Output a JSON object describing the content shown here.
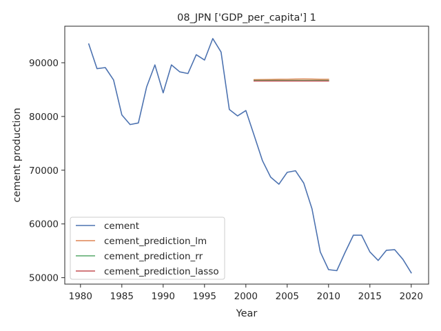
{
  "chart_data": {
    "type": "line",
    "title": "08_JPN ['GDP_per_capita'] 1",
    "xlabel": "Year",
    "ylabel": "cement production",
    "xlim": [
      1978.1,
      2022.1
    ],
    "ylim": [
      48800,
      96800
    ],
    "xticks": [
      1980,
      1985,
      1990,
      1995,
      2000,
      2005,
      2010,
      2015,
      2020
    ],
    "yticks": [
      50000,
      60000,
      70000,
      80000,
      90000
    ],
    "grid": false,
    "legend_position": "lower-left",
    "series": [
      {
        "name": "cement",
        "color": "#4c72b0",
        "x": [
          1981,
          1982,
          1983,
          1984,
          1985,
          1986,
          1987,
          1988,
          1989,
          1990,
          1991,
          1992,
          1993,
          1994,
          1995,
          1996,
          1997,
          1998,
          1999,
          2000,
          2001,
          2002,
          2003,
          2004,
          2005,
          2006,
          2007,
          2008,
          2009,
          2010,
          2011,
          2012,
          2013,
          2014,
          2015,
          2016,
          2017,
          2018,
          2019,
          2020
        ],
        "values": [
          93500,
          88900,
          89100,
          86800,
          80300,
          78500,
          78800,
          85500,
          89600,
          84400,
          89600,
          88300,
          88000,
          91500,
          90500,
          94500,
          92000,
          81300,
          80100,
          81100,
          76500,
          71800,
          68700,
          67400,
          69600,
          69900,
          67600,
          62800,
          54800,
          51500,
          51300,
          54700,
          57900,
          57900,
          54800,
          53200,
          55100,
          55200,
          53400,
          50900
        ]
      },
      {
        "name": "cement_prediction_lm",
        "color": "#dd8452",
        "x": [
          2001,
          2002,
          2003,
          2004,
          2005,
          2006,
          2007,
          2008,
          2009,
          2010
        ],
        "values": [
          86850,
          86870,
          86880,
          86900,
          86920,
          86950,
          86970,
          86960,
          86900,
          86920
        ]
      },
      {
        "name": "cement_prediction_rr",
        "color": "#55a868",
        "x": [
          2001,
          2002,
          2003,
          2004,
          2005,
          2006,
          2007,
          2008,
          2009,
          2010
        ],
        "values": [
          86700,
          86700,
          86700,
          86700,
          86700,
          86700,
          86700,
          86700,
          86700,
          86700
        ]
      },
      {
        "name": "cement_prediction_lasso",
        "color": "#c44e52",
        "x": [
          2001,
          2002,
          2003,
          2004,
          2005,
          2006,
          2007,
          2008,
          2009,
          2010
        ],
        "values": [
          86600,
          86600,
          86600,
          86600,
          86600,
          86600,
          86600,
          86600,
          86600,
          86600
        ]
      }
    ]
  }
}
